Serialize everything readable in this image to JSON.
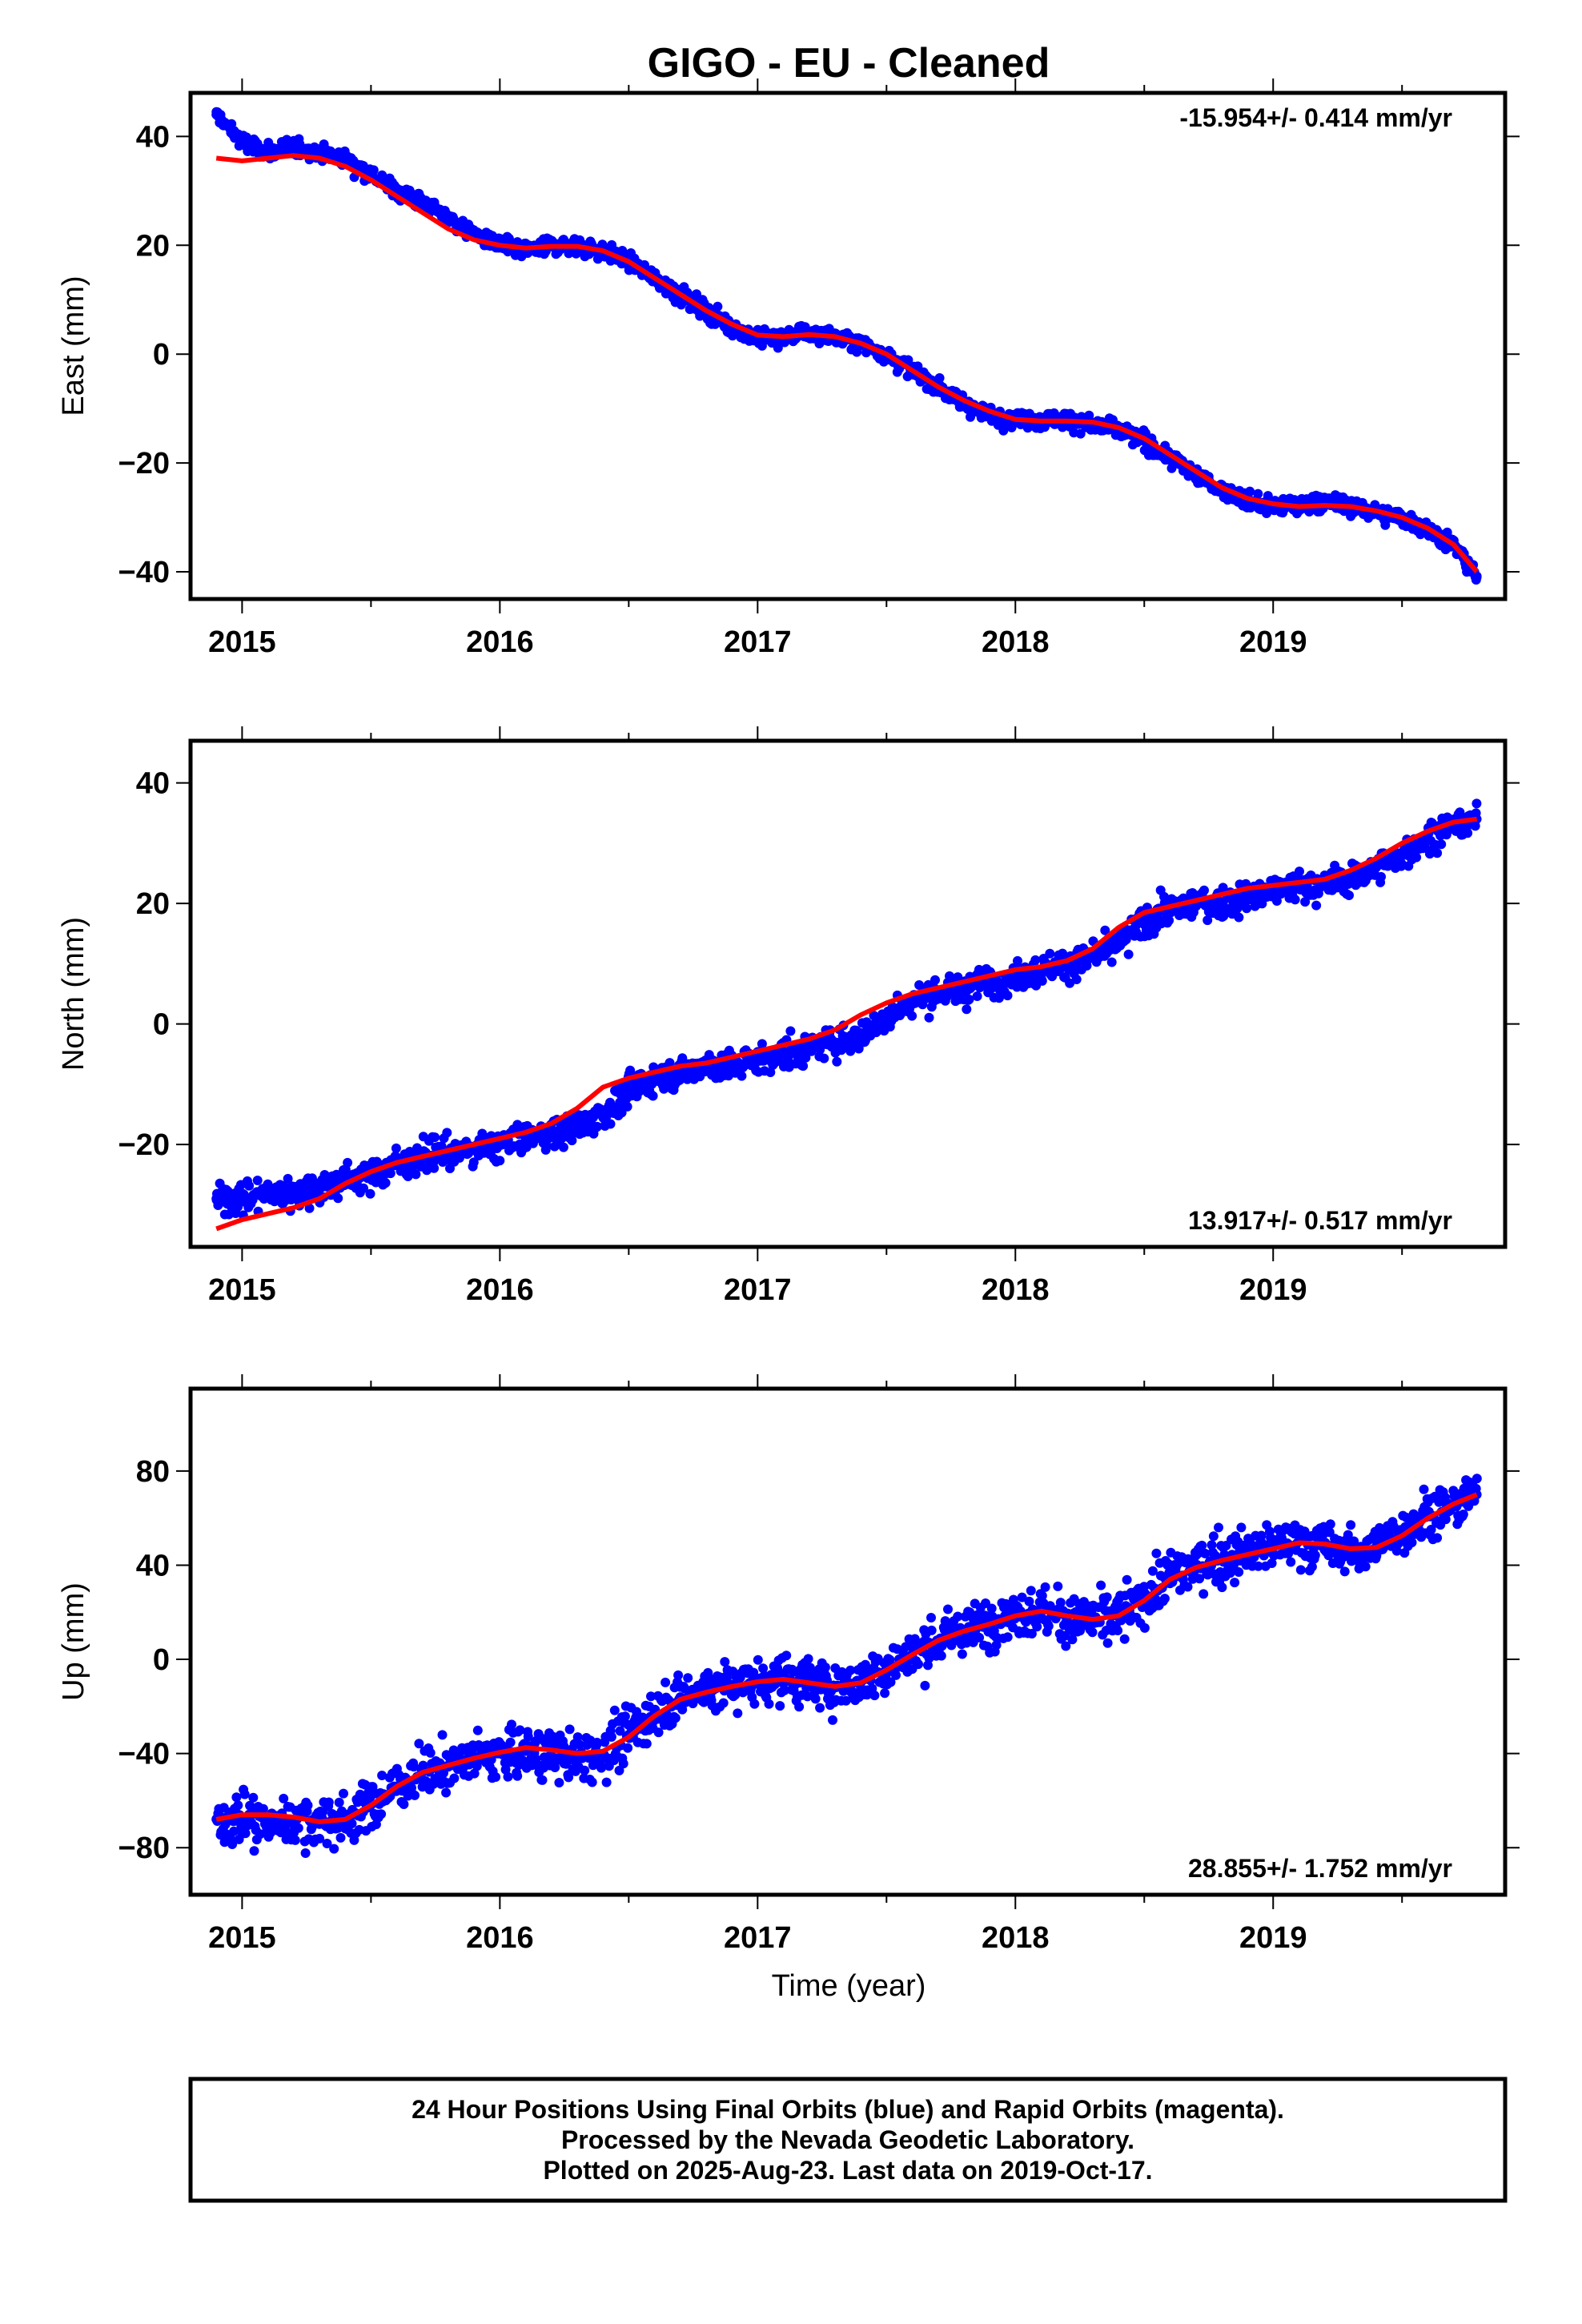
{
  "title": "GIGO  - EU - Cleaned",
  "colors": {
    "points": "#0000ff",
    "fit": "#ff0000",
    "frame": "#000000"
  },
  "chart_data": [
    {
      "type": "scatter",
      "panel": "east",
      "title": "",
      "xlabel": "",
      "ylabel": "East (mm)",
      "xlim": [
        2014.8,
        2019.9
      ],
      "ylim": [
        -45,
        48
      ],
      "x_ticks": [
        2015,
        2016,
        2017,
        2018,
        2019
      ],
      "x_tick_labels": [
        "2015",
        "2016",
        "2017",
        "2018",
        "2019"
      ],
      "y_ticks": [
        -40,
        -20,
        0,
        20,
        40
      ],
      "y_tick_labels": [
        "−40",
        "−20",
        "0",
        "20",
        "40"
      ],
      "rate_label": "-15.954+/- 0.414 mm/yr",
      "rate_position": "top-right",
      "series": [
        {
          "role": "daily positions",
          "x": [
            2014.9,
            2015.0,
            2015.1,
            2015.2,
            2015.3,
            2015.4,
            2015.5,
            2015.6,
            2015.7,
            2015.8,
            2015.9,
            2016.0,
            2016.1,
            2016.2,
            2016.3,
            2016.4,
            2016.5,
            2016.6,
            2016.7,
            2016.8,
            2016.9,
            2017.0,
            2017.1,
            2017.2,
            2017.3,
            2017.4,
            2017.5,
            2017.6,
            2017.7,
            2017.8,
            2017.9,
            2018.0,
            2018.1,
            2018.2,
            2018.3,
            2018.4,
            2018.5,
            2018.6,
            2018.7,
            2018.8,
            2018.9,
            2019.0,
            2019.1,
            2019.2,
            2019.3,
            2019.4,
            2019.5,
            2019.6,
            2019.7,
            2019.79
          ],
          "y": [
            44,
            39,
            37,
            38,
            37,
            36,
            33,
            30,
            28,
            25,
            22,
            20,
            19,
            20,
            20,
            19,
            17,
            14,
            11,
            8,
            5,
            3,
            3,
            4,
            3,
            2,
            0,
            -3,
            -6,
            -9,
            -11,
            -12,
            -12,
            -12,
            -13,
            -14,
            -16,
            -19,
            -22,
            -25,
            -27,
            -28,
            -28,
            -27,
            -28,
            -29,
            -30,
            -32,
            -35,
            -41
          ]
        },
        {
          "role": "fit",
          "x": [
            2014.9,
            2015.0,
            2015.1,
            2015.2,
            2015.3,
            2015.4,
            2015.5,
            2015.6,
            2015.7,
            2015.8,
            2015.9,
            2016.0,
            2016.1,
            2016.2,
            2016.3,
            2016.4,
            2016.5,
            2016.6,
            2016.7,
            2016.8,
            2016.9,
            2017.0,
            2017.1,
            2017.2,
            2017.3,
            2017.4,
            2017.5,
            2017.6,
            2017.7,
            2017.8,
            2017.9,
            2018.0,
            2018.1,
            2018.2,
            2018.3,
            2018.4,
            2018.5,
            2018.6,
            2018.7,
            2018.8,
            2018.9,
            2019.0,
            2019.1,
            2019.2,
            2019.3,
            2019.4,
            2019.5,
            2019.6,
            2019.7,
            2019.79
          ],
          "y": [
            36,
            35.5,
            36,
            36.5,
            36,
            34.5,
            32,
            29,
            26,
            23,
            21,
            20,
            19.5,
            19.8,
            19.8,
            19,
            17,
            14,
            11,
            8,
            5.5,
            3.5,
            3.2,
            3.6,
            3.2,
            2,
            0,
            -3,
            -6,
            -8.5,
            -10.5,
            -12,
            -12.3,
            -12.3,
            -12.5,
            -13.5,
            -15.5,
            -18.5,
            -21.5,
            -24.5,
            -26.5,
            -27.5,
            -28,
            -27.8,
            -28,
            -28.8,
            -30,
            -32,
            -35,
            -40
          ]
        }
      ]
    },
    {
      "type": "scatter",
      "panel": "north",
      "title": "",
      "xlabel": "",
      "ylabel": "North (mm)",
      "xlim": [
        2014.8,
        2019.9
      ],
      "ylim": [
        -37,
        47
      ],
      "x_ticks": [
        2015,
        2016,
        2017,
        2018,
        2019
      ],
      "x_tick_labels": [
        "2015",
        "2016",
        "2017",
        "2018",
        "2019"
      ],
      "y_ticks": [
        -20,
        0,
        20,
        40
      ],
      "y_tick_labels": [
        "−20",
        "0",
        "20",
        "40"
      ],
      "rate_label": "13.917+/- 0.517 mm/yr",
      "rate_position": "bottom-right",
      "series": [
        {
          "role": "daily positions",
          "x": [
            2014.9,
            2015.0,
            2015.1,
            2015.2,
            2015.3,
            2015.4,
            2015.5,
            2015.6,
            2015.7,
            2015.8,
            2015.9,
            2016.0,
            2016.1,
            2016.2,
            2016.3,
            2016.4,
            2016.5,
            2016.6,
            2016.7,
            2016.8,
            2016.9,
            2017.0,
            2017.1,
            2017.2,
            2017.3,
            2017.4,
            2017.5,
            2017.6,
            2017.7,
            2017.8,
            2017.9,
            2018.0,
            2018.1,
            2018.2,
            2018.3,
            2018.4,
            2018.5,
            2018.6,
            2018.7,
            2018.8,
            2018.9,
            2019.0,
            2019.1,
            2019.2,
            2019.3,
            2019.4,
            2019.5,
            2019.6,
            2019.7,
            2019.79
          ],
          "y": [
            -29,
            -29,
            -28,
            -28,
            -27,
            -26,
            -25,
            -23,
            -22,
            -21,
            -21,
            -20,
            -19,
            -18,
            -17,
            -15,
            -11,
            -9,
            -8,
            -7,
            -7,
            -6,
            -5,
            -4,
            -3,
            -2,
            1,
            4,
            5,
            6,
            7,
            8,
            9,
            10,
            11,
            13,
            17,
            19,
            20,
            20,
            21,
            22,
            23,
            23,
            24,
            26,
            28,
            31,
            33,
            34
          ]
        },
        {
          "role": "fit",
          "x": [
            2014.9,
            2015.0,
            2015.1,
            2015.2,
            2015.3,
            2015.4,
            2015.5,
            2015.6,
            2015.7,
            2015.8,
            2015.9,
            2016.0,
            2016.1,
            2016.2,
            2016.3,
            2016.4,
            2016.5,
            2016.6,
            2016.7,
            2016.8,
            2016.9,
            2017.0,
            2017.1,
            2017.2,
            2017.3,
            2017.4,
            2017.5,
            2017.6,
            2017.7,
            2017.8,
            2017.9,
            2018.0,
            2018.1,
            2018.2,
            2018.3,
            2018.4,
            2018.5,
            2018.6,
            2018.7,
            2018.8,
            2018.9,
            2019.0,
            2019.1,
            2019.2,
            2019.3,
            2019.4,
            2019.5,
            2019.6,
            2019.7,
            2019.79
          ],
          "y": [
            -34,
            -32.5,
            -31.5,
            -30.5,
            -29,
            -26.5,
            -24.5,
            -23,
            -22,
            -21,
            -20,
            -19,
            -18,
            -16.5,
            -14,
            -10.5,
            -9,
            -8,
            -7,
            -6.5,
            -5.5,
            -4.5,
            -3.5,
            -2.5,
            -1,
            1.5,
            3.5,
            5,
            6,
            7,
            8,
            9,
            9.5,
            10.5,
            12.5,
            16,
            18.5,
            19.5,
            20.5,
            21.5,
            22.5,
            23,
            23.5,
            24,
            25.5,
            27.5,
            30,
            32,
            33.5,
            34
          ]
        }
      ]
    },
    {
      "type": "scatter",
      "panel": "up",
      "title": "",
      "xlabel": "Time (year)",
      "ylabel": "Up (mm)",
      "xlim": [
        2014.8,
        2019.9
      ],
      "ylim": [
        -100,
        115
      ],
      "x_ticks": [
        2015,
        2016,
        2017,
        2018,
        2019
      ],
      "x_tick_labels": [
        "2015",
        "2016",
        "2017",
        "2018",
        "2019"
      ],
      "y_ticks": [
        -80,
        -40,
        0,
        40,
        80
      ],
      "y_tick_labels": [
        "−80",
        "−40",
        "0",
        "40",
        "80"
      ],
      "rate_label": "28.855+/- 1.752 mm/yr",
      "rate_position": "bottom-right",
      "series": [
        {
          "role": "daily positions",
          "x": [
            2014.9,
            2015.0,
            2015.1,
            2015.2,
            2015.3,
            2015.4,
            2015.5,
            2015.6,
            2015.7,
            2015.8,
            2015.9,
            2016.0,
            2016.1,
            2016.2,
            2016.3,
            2016.4,
            2016.5,
            2016.6,
            2016.7,
            2016.8,
            2016.9,
            2017.0,
            2017.1,
            2017.2,
            2017.3,
            2017.4,
            2017.5,
            2017.6,
            2017.7,
            2017.8,
            2017.9,
            2018.0,
            2018.1,
            2018.2,
            2018.3,
            2018.4,
            2018.5,
            2018.6,
            2018.7,
            2018.8,
            2018.9,
            2019.0,
            2019.1,
            2019.2,
            2019.3,
            2019.4,
            2019.5,
            2019.6,
            2019.7,
            2019.79
          ],
          "y": [
            -68,
            -68,
            -70,
            -68,
            -70,
            -68,
            -62,
            -54,
            -48,
            -45,
            -42,
            -40,
            -39,
            -41,
            -42,
            -40,
            -32,
            -22,
            -16,
            -13,
            -11,
            -9,
            -8,
            -10,
            -12,
            -10,
            -4,
            2,
            8,
            12,
            16,
            20,
            20,
            17,
            17,
            18,
            25,
            35,
            40,
            43,
            45,
            48,
            50,
            48,
            45,
            48,
            55,
            62,
            65,
            70
          ]
        },
        {
          "role": "fit",
          "x": [
            2014.9,
            2015.0,
            2015.1,
            2015.2,
            2015.3,
            2015.4,
            2015.5,
            2015.6,
            2015.7,
            2015.8,
            2015.9,
            2016.0,
            2016.1,
            2016.2,
            2016.3,
            2016.4,
            2016.5,
            2016.6,
            2016.7,
            2016.8,
            2016.9,
            2017.0,
            2017.1,
            2017.2,
            2017.3,
            2017.4,
            2017.5,
            2017.6,
            2017.7,
            2017.8,
            2017.9,
            2018.0,
            2018.1,
            2018.2,
            2018.3,
            2018.4,
            2018.5,
            2018.6,
            2018.7,
            2018.8,
            2018.9,
            2019.0,
            2019.1,
            2019.2,
            2019.3,
            2019.4,
            2019.5,
            2019.6,
            2019.7,
            2019.79
          ],
          "y": [
            -68,
            -66,
            -66,
            -67,
            -69,
            -68,
            -62,
            -54,
            -48,
            -45,
            -42,
            -39.5,
            -37.5,
            -38.5,
            -40,
            -39,
            -33,
            -24,
            -17,
            -14,
            -11.5,
            -9.5,
            -8.5,
            -10,
            -11.5,
            -10,
            -4.5,
            2,
            8,
            12,
            15,
            18.5,
            20.5,
            18.5,
            17,
            18.5,
            25,
            34,
            39,
            42,
            44.5,
            47,
            49.5,
            49,
            47,
            47.5,
            52.5,
            60,
            66,
            70
          ]
        }
      ]
    }
  ],
  "footer": {
    "line1": "24 Hour Positions Using Final Orbits (blue) and Rapid Orbits (magenta).",
    "line2": "Processed by the Nevada Geodetic Laboratory.",
    "line3": "Plotted on 2025-Aug-23. Last data on 2019-Oct-17."
  }
}
